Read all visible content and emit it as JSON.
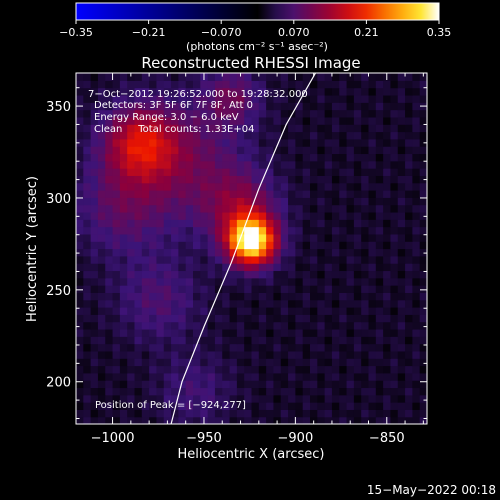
{
  "chart_data": {
    "type": "heatmap",
    "title": "Reconstructed RHESSI Image",
    "xlabel": "Heliocentric X (arcsec)",
    "ylabel": "Heliocentric Y (arcsec)",
    "xlim": [
      -1020,
      -828
    ],
    "ylim": [
      177,
      368
    ],
    "xticks": [
      -1000,
      -950,
      -900,
      -850
    ],
    "xtick_labels": [
      "−1000",
      "−950",
      "−900",
      "−850"
    ],
    "yticks": [
      200,
      250,
      300,
      350
    ],
    "ytick_labels": [
      "200",
      "250",
      "300",
      "350"
    ],
    "colorbar": {
      "range": [
        -0.35,
        0.35
      ],
      "ticks": [
        -0.35,
        -0.21,
        -0.07,
        0.07,
        0.21,
        0.35
      ],
      "tick_labels": [
        "−0.35",
        "−0.21",
        "−0.070",
        "0.070",
        "0.21",
        "0.35"
      ],
      "units_label": "(photons cm⁻² s⁻¹ asec⁻²)"
    },
    "annotations": [
      "7−Oct−2012 19:26:52.000 to 19:28:32.000",
      "Detectors: 3F 5F 6F 7F 8F, Att 0",
      "Energy Range: 3.0 − 6.0 keV",
      "Clean     Total counts: 1.33E+04"
    ],
    "peak_label": "Position of Peak = [−924,277]",
    "peak": {
      "x": -924,
      "y": 277,
      "value": 0.35
    },
    "sources": [
      {
        "x": -924,
        "y": 277,
        "sigma": 9,
        "amp": 0.33
      },
      {
        "x": -930,
        "y": 295,
        "sigma": 14,
        "amp": 0.09
      },
      {
        "x": -985,
        "y": 330,
        "sigma": 14,
        "amp": 0.14
      },
      {
        "x": -960,
        "y": 320,
        "sigma": 22,
        "amp": 0.07
      },
      {
        "x": -935,
        "y": 355,
        "sigma": 11,
        "amp": 0.07
      },
      {
        "x": -995,
        "y": 295,
        "sigma": 18,
        "amp": 0.06
      },
      {
        "x": -975,
        "y": 245,
        "sigma": 16,
        "amp": 0.05
      },
      {
        "x": -955,
        "y": 195,
        "sigma": 14,
        "amp": 0.04
      }
    ],
    "limb": [
      [
        -889,
        368
      ],
      [
        -905,
        340
      ],
      [
        -920,
        305
      ],
      [
        -935,
        265
      ],
      [
        -950,
        230
      ],
      [
        -962,
        200
      ],
      [
        -968,
        177
      ]
    ],
    "colors": {
      "background": "#000000",
      "foreground": "#ffffff",
      "limb": "#ffffff"
    }
  },
  "footer": {
    "timestamp": "15−May−2022 00:18"
  }
}
